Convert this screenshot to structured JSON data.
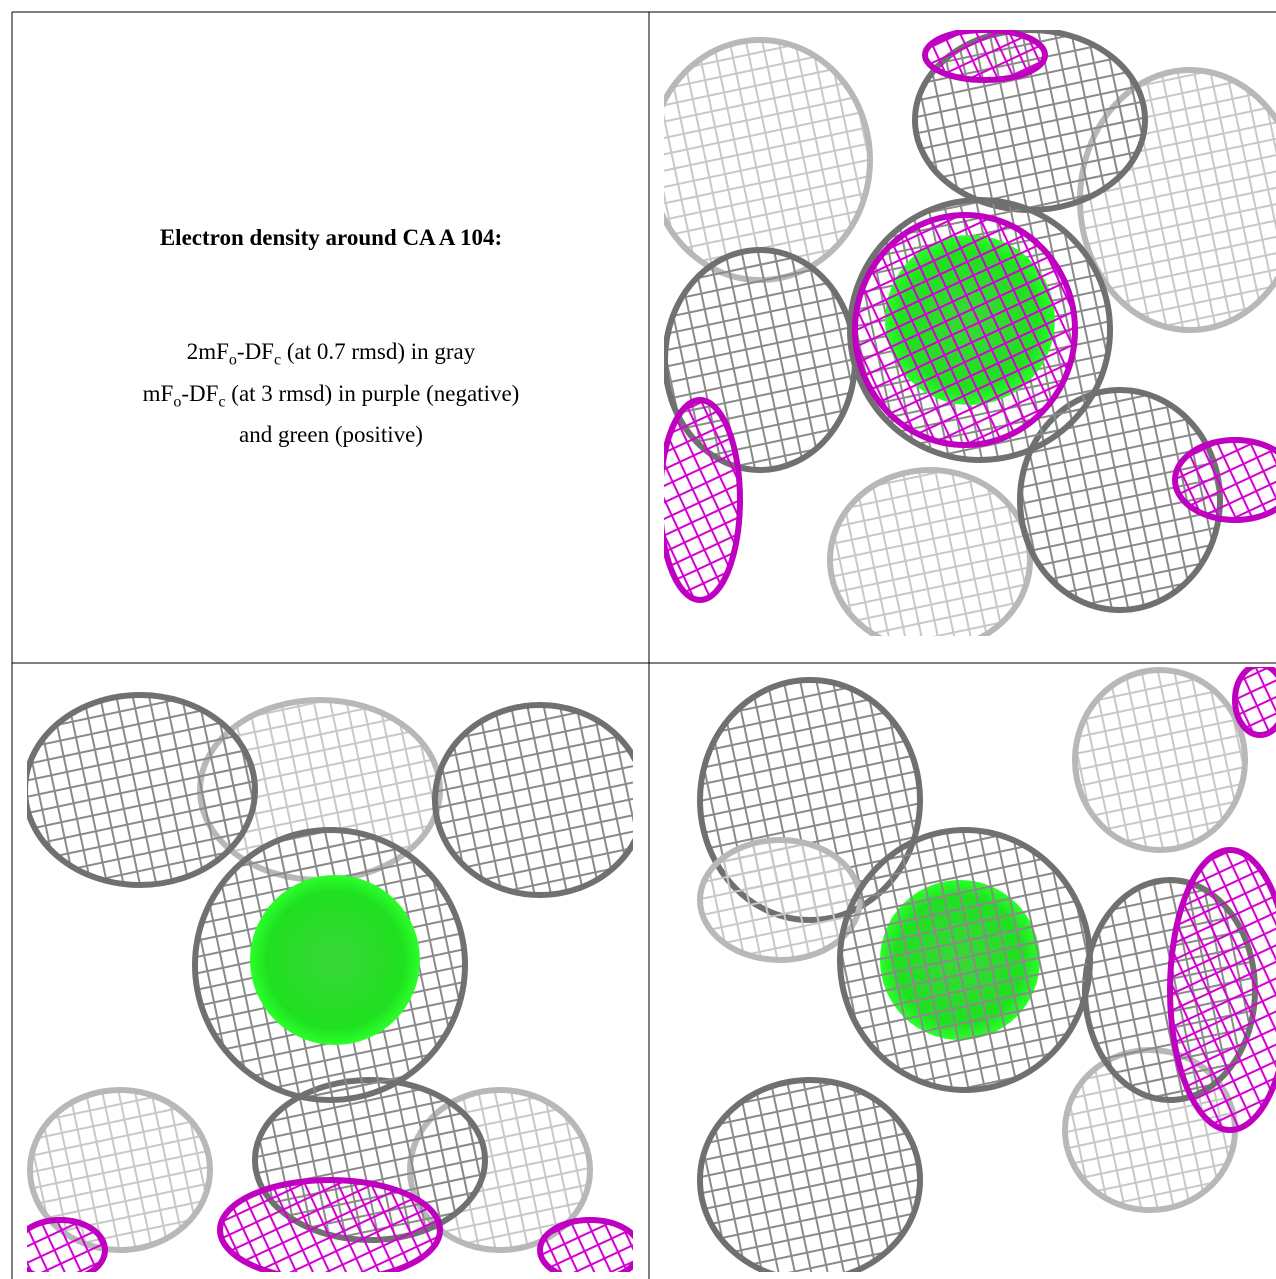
{
  "figure": {
    "title": "Electron density around CA A 104:",
    "legend": [
      [
        "2mF",
        "o",
        "-DF",
        "c",
        " (at 0.7 rmsd) in gray"
      ],
      [
        "mF",
        "o",
        "-DF",
        "c",
        " (at 3 rmsd) in purple (negative)"
      ],
      [
        "and green (positive)"
      ]
    ]
  }
}
